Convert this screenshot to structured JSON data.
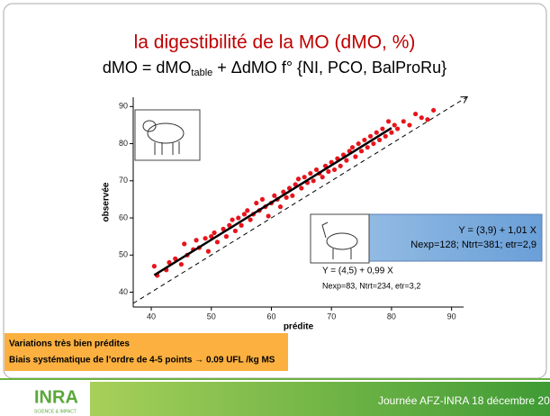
{
  "slide": {
    "title": "la digestibilité de la MO (dMO, %)",
    "formula": [
      "dMO = dMO",
      "table",
      " + ΔdMO f° {NI, PCO, BalProRu}"
    ],
    "note": [
      "Variations très bien prédites",
      "Biais systématique de l’ordre de 4-5 points → 0.09 UFL /kg MS"
    ],
    "logo": [
      "INRA",
      "SCIENCE & IMPACT"
    ],
    "footer": "Journée AFZ-INRA 18 décembre 2013"
  },
  "chart_data": {
    "type": "scatter",
    "x_label": "prédite",
    "y_label": "observée",
    "color": "#e8141c",
    "x": [
      40.5,
      41,
      42.5,
      43,
      44,
      45,
      45.5,
      46,
      47,
      47.5,
      48,
      49,
      49.5,
      50,
      50.5,
      51,
      52,
      52.5,
      53,
      53.5,
      54,
      54.5,
      55,
      55.5,
      56,
      56.5,
      57,
      57.5,
      58,
      58.5,
      59,
      59.5,
      60,
      60.5,
      61,
      61.5,
      62,
      62.5,
      63,
      63.5,
      64,
      64.5,
      65,
      65.5,
      66,
      66.5,
      67,
      67.5,
      68,
      68.5,
      69,
      69.5,
      70,
      70.5,
      71,
      71.5,
      72,
      72.5,
      73,
      73.5,
      74,
      74.5,
      75,
      75.5,
      76,
      76.5,
      77,
      77.5,
      78,
      78.5,
      79,
      79.5,
      80,
      80.5,
      81,
      82,
      83,
      84,
      85,
      86,
      87
    ],
    "values": [
      47,
      44.5,
      46,
      48,
      49,
      47.5,
      53,
      50,
      51.5,
      54,
      52,
      54.5,
      51,
      55,
      56,
      53.5,
      57,
      55,
      58,
      59.5,
      56.5,
      60,
      58,
      61,
      62,
      59.5,
      61,
      64,
      62,
      65,
      63,
      60.5,
      64,
      66,
      65,
      63,
      67,
      65.5,
      68,
      66,
      69,
      70.5,
      68,
      71,
      69.5,
      72,
      70,
      73,
      72,
      71,
      74,
      72.5,
      75,
      73,
      76,
      74,
      77,
      75.5,
      78,
      79,
      76.5,
      80,
      78,
      81,
      79,
      82,
      80,
      83,
      81,
      84,
      82,
      86,
      83,
      85,
      84,
      86,
      85,
      88,
      87,
      86.5,
      89
    ],
    "lines": [
      {
        "x": [
          40.5,
          80
        ],
        "values": [
          44.6,
          84.2
        ],
        "color": "#000000",
        "dashed": false
      },
      {
        "x": [
          37,
          92.5
        ],
        "values": [
          37,
          92.5
        ],
        "color": "#000000",
        "dashed": true
      }
    ],
    "annotations": [
      "Y = (4,5) + 0,99 X",
      "Nexp=83, Ntrt=234, etr=3,2"
    ],
    "box_text": [
      "Y = (3,9) + 1,01 X",
      "Nexp=128; Ntrt=381; etr=2,9"
    ],
    "xlim": [
      37,
      92
    ],
    "ylim": [
      36,
      92.5
    ],
    "xticks": [
      40,
      50,
      60,
      70,
      80,
      90
    ],
    "yticks": [
      40,
      50,
      60,
      70,
      80,
      90
    ]
  }
}
